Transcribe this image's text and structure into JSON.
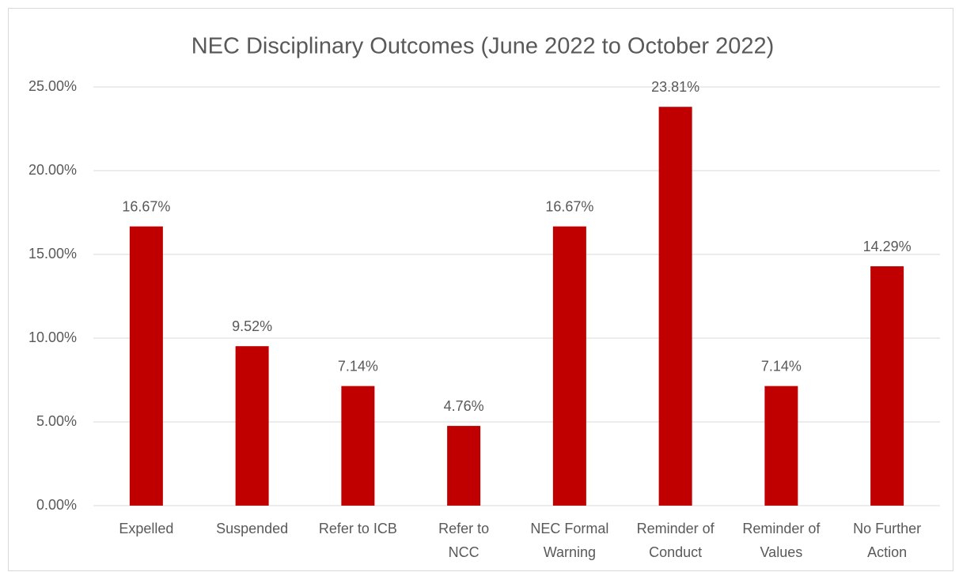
{
  "chart_data": {
    "type": "bar",
    "title": "NEC Disciplinary Outcomes (June 2022 to October 2022)",
    "categories": [
      "Expelled",
      "Suspended",
      "Refer to ICB",
      "Refer to NCC",
      "NEC Formal Warning",
      "Reminder of Conduct",
      "Reminder of Values",
      "No Further Action"
    ],
    "values": [
      16.67,
      9.52,
      7.14,
      4.76,
      16.67,
      23.81,
      7.14,
      14.29
    ],
    "value_labels": [
      "16.67%",
      "9.52%",
      "7.14%",
      "4.76%",
      "16.67%",
      "23.81%",
      "7.14%",
      "14.29%"
    ],
    "color": "#c00000",
    "ylim": [
      0,
      25
    ],
    "yticks": [
      {
        "value": 0,
        "label": "0.00%"
      },
      {
        "value": 5,
        "label": "5.00%"
      },
      {
        "value": 10,
        "label": "10.00%"
      },
      {
        "value": 15,
        "label": "15.00%"
      },
      {
        "value": 20,
        "label": "20.00%"
      },
      {
        "value": 25,
        "label": "25.00%"
      }
    ],
    "grid": true
  }
}
